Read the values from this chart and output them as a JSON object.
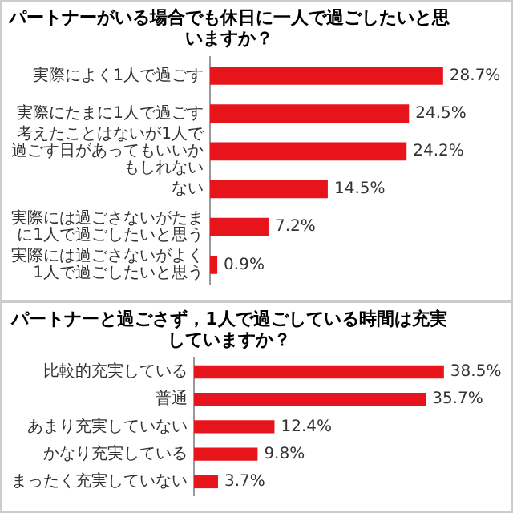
{
  "chart_data": [
    {
      "type": "bar",
      "orientation": "horizontal",
      "title": "パートナーがいる場合でも休日に一人で過ごしたいと思いますか？",
      "categories": [
        "実際によく1人で過ごす",
        "実際にたまに1人で過ごす",
        "考えたことはないが1人で過ごす日があってもいいかもしれない",
        "ない",
        "実際には過ごさないがたまに1人で過ごしたいと思う",
        "実際には過ごさないがよく1人で過ごしたいと思う"
      ],
      "values": [
        28.7,
        24.5,
        24.2,
        14.5,
        7.2,
        0.9
      ],
      "value_labels": [
        "28.7%",
        "24.5%",
        "24.2%",
        "14.5%",
        "7.2%",
        "0.9%"
      ],
      "color": "#e8141b"
    },
    {
      "type": "bar",
      "orientation": "horizontal",
      "title": "パートナーと過ごさず，1人で過ごしている時間は充実していますか？",
      "categories": [
        "比較的充実している",
        "普通",
        "あまり充実していない",
        "かなり充実している",
        "まったく充実していない"
      ],
      "values": [
        38.5,
        35.7,
        12.4,
        9.8,
        3.7
      ],
      "value_labels": [
        "38.5%",
        "35.7%",
        "12.4%",
        "9.8%",
        "3.7%"
      ],
      "color": "#e8141b"
    }
  ]
}
